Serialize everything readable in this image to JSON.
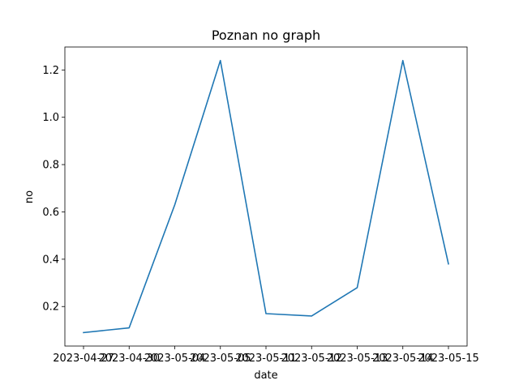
{
  "chart_data": {
    "type": "line",
    "title": "Poznan no graph",
    "xlabel": "date",
    "ylabel": "no",
    "x": [
      "2023-04-27",
      "2023-04-30",
      "2023-05-04",
      "2023-05-05",
      "2023-05-11",
      "2023-05-12",
      "2023-05-13",
      "2023-05-14",
      "2023-05-15"
    ],
    "x_tick_labels": [
      "2023-04-27",
      "2023-04-30",
      "2023-05-04",
      "2023-05-05",
      "2023-05-11",
      "2023-05-12",
      "2023-05-13",
      "2023-05-14",
      "2023-05-15"
    ],
    "series": [
      {
        "values": [
          0.09,
          0.11,
          0.63,
          1.24,
          0.17,
          0.16,
          0.28,
          1.24,
          0.38
        ],
        "color": "#1f77b4"
      }
    ],
    "y_ticks": [
      0.2,
      0.4,
      0.6,
      0.8,
      1.0,
      1.2
    ],
    "y_tick_labels": [
      "0.2",
      "0.4",
      "0.6",
      "0.8",
      "1.0",
      "1.2"
    ],
    "ylim": [
      0.033,
      1.297
    ],
    "grid": false,
    "legend": "none"
  }
}
